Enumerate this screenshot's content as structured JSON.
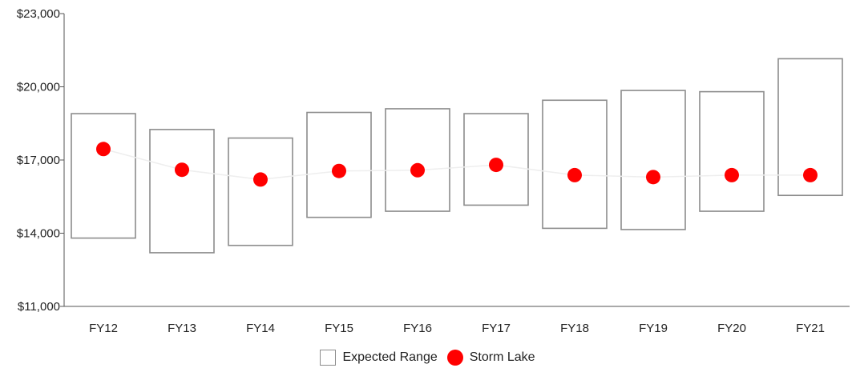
{
  "chart_data": {
    "type": "scatter",
    "categories": [
      "FY12",
      "FY13",
      "FY14",
      "FY15",
      "FY16",
      "FY17",
      "FY18",
      "FY19",
      "FY20",
      "FY21"
    ],
    "series": [
      {
        "name": "Expected Range",
        "kind": "range",
        "low": [
          13800,
          13200,
          13500,
          14650,
          14900,
          15150,
          14200,
          14150,
          14900,
          15550
        ],
        "high": [
          18900,
          18250,
          17900,
          18950,
          19100,
          18900,
          19450,
          19850,
          19800,
          21150
        ]
      },
      {
        "name": "Storm Lake",
        "kind": "point",
        "values": [
          17450,
          16600,
          16200,
          16550,
          16580,
          16800,
          16380,
          16300,
          16380,
          16380
        ]
      }
    ],
    "y_ticks": [
      "$11,000",
      "$14,000",
      "$17,000",
      "$20,000",
      "$23,000"
    ],
    "ylim": [
      11000,
      23000
    ],
    "grid": false,
    "legend_position": "bottom",
    "colors": {
      "range_stroke": "#8c8c8c",
      "point": "#ff0000",
      "axis": "#555555"
    }
  }
}
